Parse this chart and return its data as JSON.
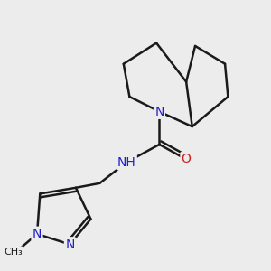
{
  "background_color": "#ececec",
  "bond_color": "#1a1a1a",
  "bond_width": 1.8,
  "atom_colors": {
    "N": "#2020cc",
    "O": "#cc2020",
    "H": "#555577",
    "C": "#1a1a1a"
  },
  "font_size_atom": 11,
  "font_size_small": 9
}
